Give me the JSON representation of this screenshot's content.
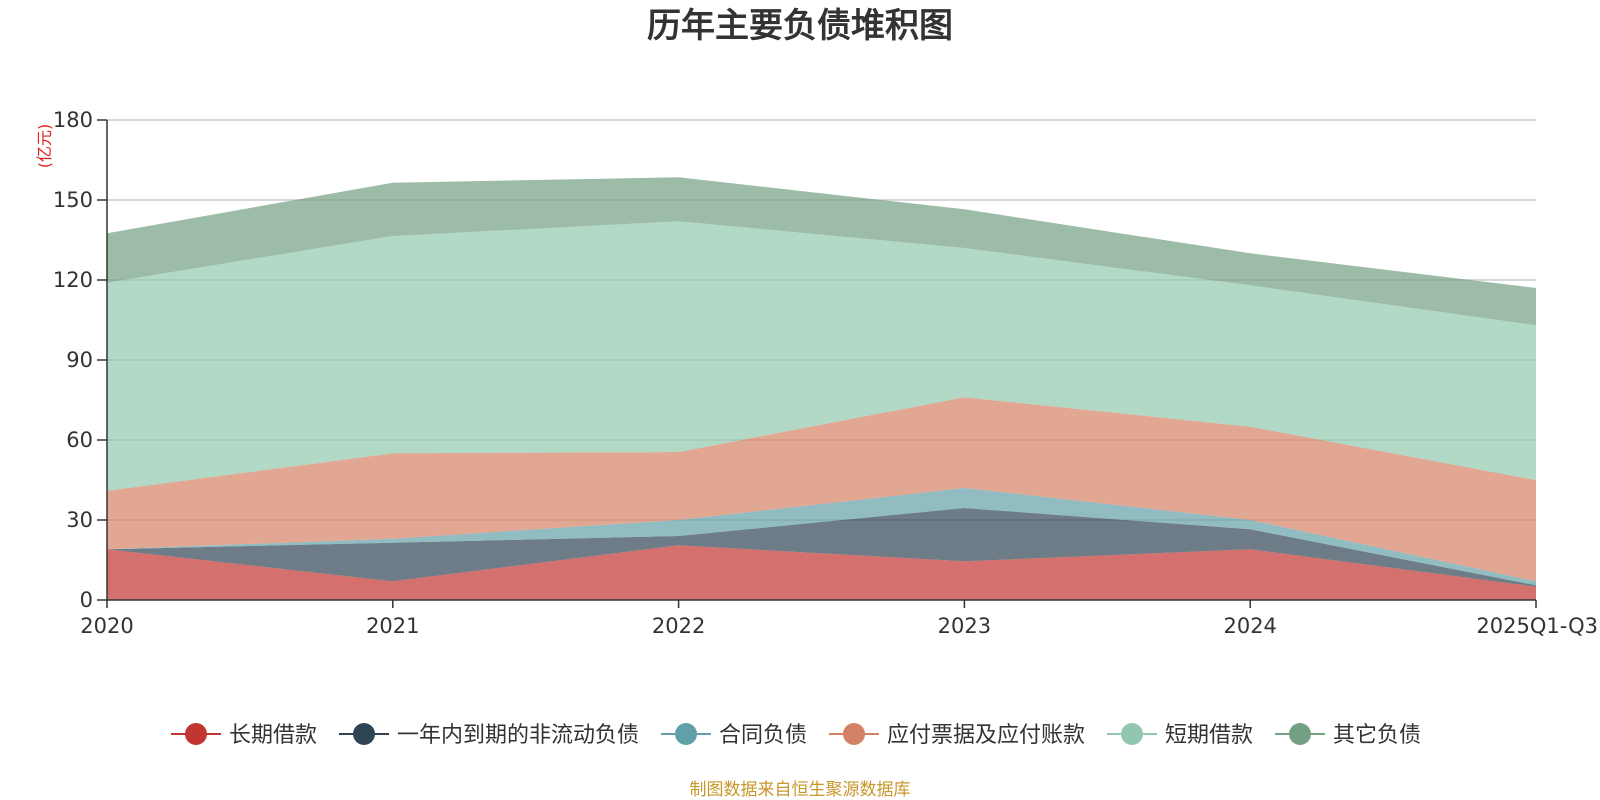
{
  "chart_data": {
    "type": "area",
    "stacked": true,
    "title": "历年主要负债堆积图",
    "unit_label": "(亿元)",
    "categories": [
      "2020",
      "2021",
      "2022",
      "2023",
      "2024",
      "2025Q1-Q3"
    ],
    "ylim": [
      0,
      180
    ],
    "yticks": [
      "0",
      "30",
      "60",
      "90",
      "120",
      "150",
      "180"
    ],
    "grid": true,
    "legend_position": "bottom",
    "series": [
      {
        "name": "长期借款",
        "color": "#c23531",
        "values": [
          19,
          7,
          20.5,
          14.5,
          19,
          5
        ]
      },
      {
        "name": "一年内到期的非流动负债",
        "color": "#2f4554",
        "values": [
          0,
          14.5,
          3.5,
          20,
          7.5,
          0.5
        ]
      },
      {
        "name": "合同负债",
        "color": "#61a0a8",
        "values": [
          0,
          1.5,
          6,
          7.5,
          3.5,
          1.5
        ]
      },
      {
        "name": "应付票据及应付账款",
        "color": "#d48265",
        "values": [
          22,
          32,
          25.5,
          34,
          35,
          38
        ]
      },
      {
        "name": "短期借款",
        "color": "#91c7ae",
        "values": [
          78,
          81.5,
          86.5,
          56,
          53,
          58
        ]
      },
      {
        "name": "其它负债",
        "color": "#749f83",
        "values": [
          18.5,
          20,
          16.5,
          14.5,
          12,
          14
        ]
      }
    ],
    "source_note": "制图数据来自恒生聚源数据库"
  }
}
